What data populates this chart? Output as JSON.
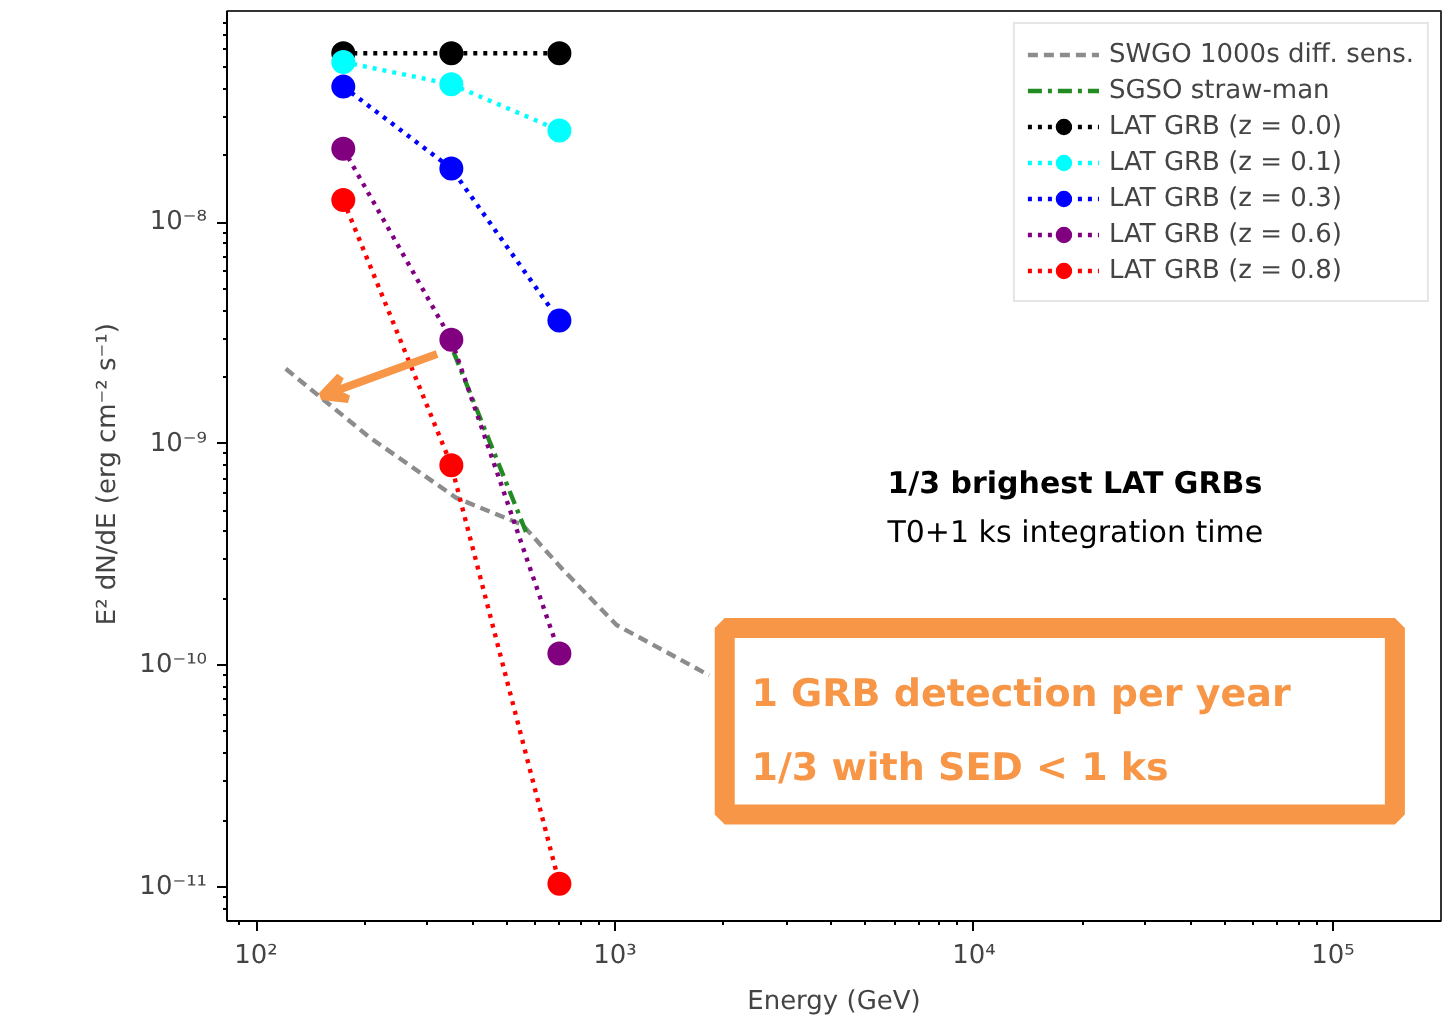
{
  "chart_data": {
    "type": "line",
    "xlabel": "Energy (GeV)",
    "ylabel": "E² dN/dE   (erg cm⁻² s⁻¹)",
    "log": "xy",
    "xlim": [
      83,
      200000
    ],
    "ylim": [
      7e-12,
      9e-08
    ],
    "xticks": [
      {
        "value": 100,
        "label": "10²"
      },
      {
        "value": 1000,
        "label": "10³"
      },
      {
        "value": 10000,
        "label": "10⁴"
      },
      {
        "value": 100000,
        "label": "10⁵"
      }
    ],
    "yticks": [
      {
        "value": 1e-11,
        "label": "10⁻¹¹"
      },
      {
        "value": 1e-10,
        "label": "10⁻¹⁰"
      },
      {
        "value": 1e-09,
        "label": "10⁻⁹"
      },
      {
        "value": 1e-08,
        "label": "10⁻⁸"
      }
    ],
    "grid": false,
    "legend": "top right",
    "series": [
      {
        "name": "SWGO 1000s diff. sens.",
        "color": "#8c8c8c",
        "line_style": "dashed",
        "marker": "none",
        "x": [
          121,
          207,
          361,
          553,
          716,
          1010,
          1830
        ],
        "values": [
          2.18e-09,
          1.07e-09,
          5.7e-10,
          4.3e-10,
          2.7e-10,
          1.52e-10,
          9e-11
        ]
      },
      {
        "name": "SGSO straw-man",
        "color": "#228b22",
        "line_style": "dashdot",
        "marker": "none",
        "x": [
          355,
          565
        ],
        "values": [
          2.6e-09,
          4e-10
        ]
      },
      {
        "name": "LAT GRB (z = 0.0)",
        "color": "#000000",
        "line_style": "dotted",
        "marker": "circle",
        "x": [
          175,
          350,
          700
        ],
        "values": [
          5.8e-08,
          5.8e-08,
          5.8e-08
        ]
      },
      {
        "name": "LAT GRB (z = 0.1)",
        "color": "#00ffff",
        "line_style": "dotted",
        "marker": "circle",
        "x": [
          175,
          350,
          700
        ],
        "values": [
          5.3e-08,
          4.2e-08,
          2.6e-08
        ]
      },
      {
        "name": "LAT GRB (z = 0.3)",
        "color": "#0000ff",
        "line_style": "dotted",
        "marker": "circle",
        "x": [
          175,
          350,
          700
        ],
        "values": [
          4.1e-08,
          1.75e-08,
          3.6e-09
        ]
      },
      {
        "name": "LAT GRB (z = 0.6)",
        "color": "#800080",
        "line_style": "dotted",
        "marker": "circle",
        "x": [
          175,
          350,
          700
        ],
        "values": [
          2.15e-08,
          2.95e-09,
          1.13e-10
        ]
      },
      {
        "name": "LAT GRB (z = 0.8)",
        "color": "#ff0000",
        "line_style": "dotted",
        "marker": "circle",
        "x": [
          175,
          350,
          700
        ],
        "values": [
          1.26e-08,
          8e-10,
          1.03e-11
        ]
      }
    ],
    "annotations": [
      "1/3 brighest LAT GRBs",
      "T0+1 ks integration time",
      "1 GRB detection per year",
      "1/3 with SED < 1 ks"
    ]
  }
}
